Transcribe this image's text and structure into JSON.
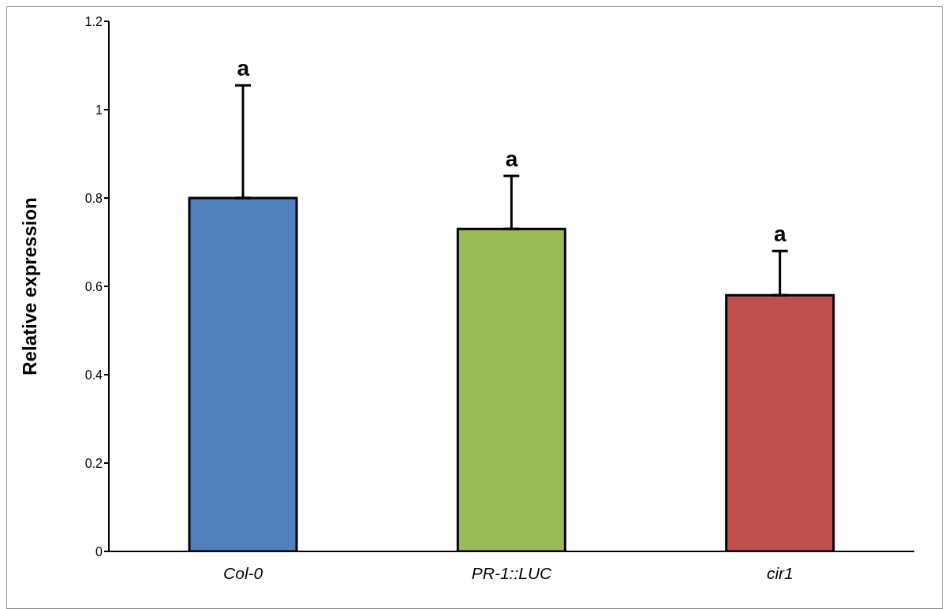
{
  "chart_data": {
    "type": "bar",
    "ylabel": "Relative expression",
    "categories": [
      "Col-0",
      "PR-1::LUC",
      "cir1"
    ],
    "values": [
      0.8,
      0.73,
      0.58
    ],
    "colors": [
      "#4f81bd",
      "#9bbb59",
      "#c0504d"
    ],
    "errors": [
      [
        0.8,
        1.055
      ],
      [
        0.73,
        0.85
      ],
      [
        0.58,
        0.68
      ]
    ],
    "ylim": [
      0,
      1.2
    ],
    "yticks": [
      0,
      0.2,
      0.4,
      0.6,
      0.8,
      1,
      1.2
    ],
    "grid": false,
    "annotations": [
      "a",
      "a",
      "a"
    ]
  }
}
